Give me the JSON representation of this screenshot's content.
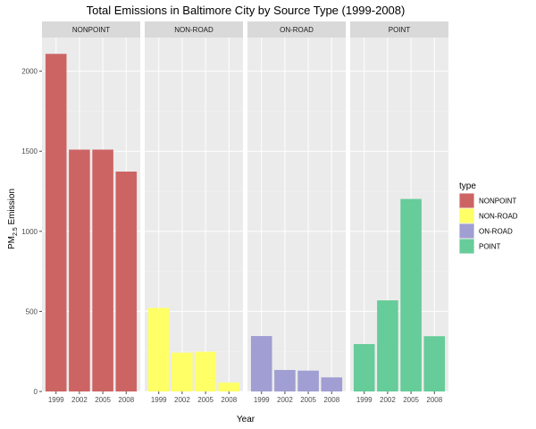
{
  "chart_data": {
    "type": "bar",
    "title": "Total Emissions in Baltimore City by Source Type (1999-2008)",
    "xlabel": "Year",
    "ylabel": "PM",
    "ylabel_sub": "2.5",
    "ylabel_suffix": " Emission",
    "ylim": [
      0,
      2210
    ],
    "yticks": [
      0,
      500,
      1000,
      1500,
      2000
    ],
    "categories": [
      "1999",
      "2002",
      "2005",
      "2008"
    ],
    "grid": true,
    "legend": {
      "title": "type",
      "placement": "right"
    },
    "facets": [
      {
        "name": "NONPOINT",
        "color": "#cd6464",
        "values": [
          2108,
          1510,
          1510,
          1373
        ]
      },
      {
        "name": "NON-ROAD",
        "color": "#ffff66",
        "values": [
          522,
          242,
          248,
          55
        ]
      },
      {
        "name": "ON-ROAD",
        "color": "#a09ed2",
        "values": [
          346,
          134,
          130,
          88
        ]
      },
      {
        "name": "POINT",
        "color": "#66cc99",
        "values": [
          296,
          569,
          1202,
          345
        ]
      }
    ]
  }
}
